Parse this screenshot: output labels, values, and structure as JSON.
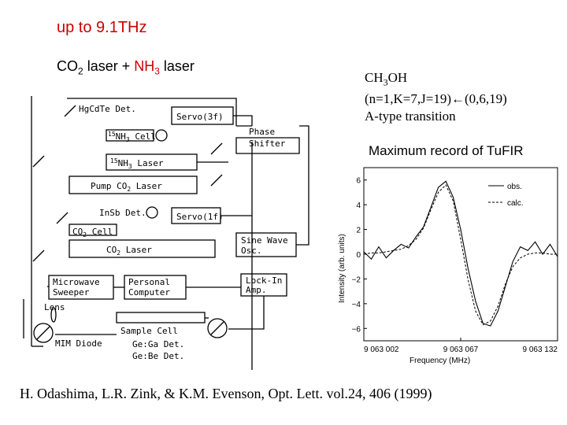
{
  "header": {
    "title": "up to 9.1THz",
    "lasers_co2": "CO",
    "lasers_co2_sub": "2",
    "lasers_mid": " laser + ",
    "lasers_nh3": "NH",
    "lasers_nh3_sub": "3",
    "lasers_end": " laser"
  },
  "molecule": {
    "formula": "CH",
    "formula_sub": "3",
    "formula_end": "OH",
    "transition": "(n=1,K=7,J=19)←(0,6,19)",
    "type": "A-type transition"
  },
  "record_label": "Maximum record of TuFIR",
  "citation": "H. Odashima, L.R. Zink, & K.M. Evenson, Opt. Lett. vol.24, 406 (1999)",
  "schematic": {
    "hgcdte_det": "HgCdTe Det.",
    "servo3f": "Servo(3f)",
    "nh3_cell": "NH",
    "nh3_cell_sup": "15",
    "nh3_cell_sub": "3",
    "nh3_cell_end": " Cell",
    "phase_shifter_1": "Phase",
    "phase_shifter_2": "Shifter",
    "nh3_laser": "NH",
    "nh3_laser_sup": "15",
    "nh3_laser_sub": "3",
    "nh3_laser_end": " Laser",
    "pump_co2_laser": "Pump CO",
    "pump_co2_sub": "2",
    "pump_co2_end": " Laser",
    "insb_det": "InSb Det.",
    "servo1f": "Servo(1f)",
    "co2_cell": "CO",
    "co2_cell_sub": "2",
    "co2_cell_end": " Cell",
    "co2_laser": "CO",
    "co2_laser_sub": "2",
    "co2_laser_end": " Laser",
    "sine_wave_1": "Sine Wave",
    "sine_wave_2": "Osc.",
    "microwave_1": "Microwave",
    "microwave_2": "Sweeper",
    "personal_1": "Personal",
    "personal_2": "Computer",
    "lockin_1": "Lock-In",
    "lockin_2": "Amp.",
    "lens": "Lens",
    "sample_cell": "Sample Cell",
    "mim_diode": "MIM Diode",
    "gega_det": "Ge:Ga Det.",
    "gebe_det": "Ge:Be Det."
  },
  "chart_data": {
    "type": "line",
    "xlabel": "Frequency (MHz)",
    "ylabel": "Intensity (arb. units)",
    "x_ticks": [
      "9 063 002",
      "9 063 067",
      "9 063 132"
    ],
    "y_ticks": [
      6,
      4,
      2,
      0,
      -2,
      -4,
      -6
    ],
    "xlim": [
      9063002,
      9063132
    ],
    "ylim": [
      -7,
      7
    ],
    "series": [
      {
        "name": "obs.",
        "style": "solid",
        "x": [
          9063002,
          9063007,
          9063012,
          9063017,
          9063022,
          9063027,
          9063032,
          9063037,
          9063042,
          9063047,
          9063052,
          9063057,
          9063062,
          9063067,
          9063072,
          9063077,
          9063082,
          9063087,
          9063092,
          9063097,
          9063102,
          9063107,
          9063112,
          9063117,
          9063122,
          9063127,
          9063132
        ],
        "y": [
          0.2,
          -0.4,
          0.6,
          -0.3,
          0.3,
          0.8,
          0.5,
          1.4,
          2.2,
          3.8,
          5.4,
          5.9,
          4.6,
          2.0,
          -1.2,
          -3.8,
          -5.6,
          -5.8,
          -4.6,
          -2.6,
          -0.6,
          0.6,
          0.3,
          1.0,
          0.0,
          0.8,
          -0.2
        ]
      },
      {
        "name": "calc.",
        "style": "dashed",
        "x": [
          9063002,
          9063007,
          9063012,
          9063017,
          9063022,
          9063027,
          9063032,
          9063037,
          9063042,
          9063047,
          9063052,
          9063057,
          9063062,
          9063067,
          9063072,
          9063077,
          9063082,
          9063087,
          9063092,
          9063097,
          9063102,
          9063107,
          9063112,
          9063117,
          9063122,
          9063127,
          9063132
        ],
        "y": [
          0.0,
          0.1,
          0.1,
          0.2,
          0.3,
          0.4,
          0.7,
          1.2,
          2.1,
          3.6,
          5.0,
          5.6,
          4.3,
          1.2,
          -2.1,
          -4.6,
          -5.7,
          -5.4,
          -4.2,
          -2.4,
          -1.0,
          -0.3,
          0.0,
          0.1,
          0.1,
          0.0,
          0.0
        ]
      }
    ]
  }
}
